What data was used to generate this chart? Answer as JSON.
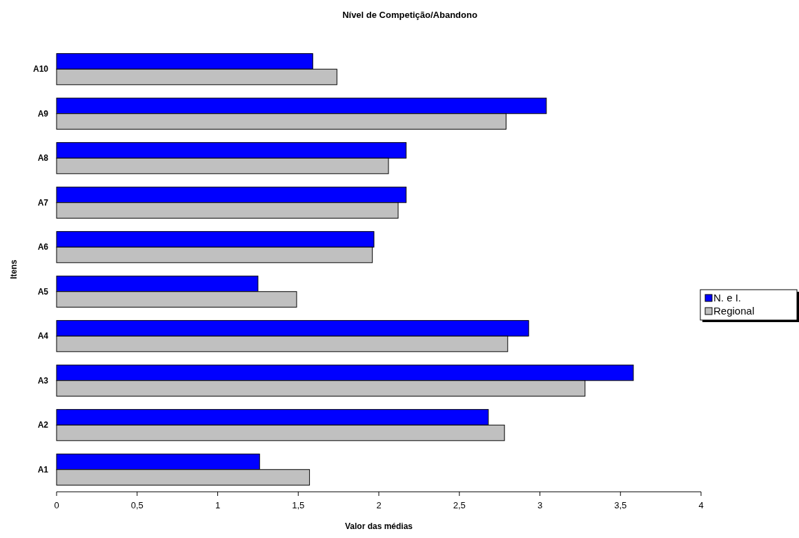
{
  "chart_data": {
    "type": "bar",
    "orientation": "horizontal",
    "title": "Nível de Competição/Abandono",
    "xlabel": "Valor das médias",
    "ylabel": "Itens",
    "categories": [
      "A10",
      "A9",
      "A8",
      "A7",
      "A6",
      "A5",
      "A4",
      "A3",
      "A2",
      "A1"
    ],
    "series": [
      {
        "name": "N. e I.",
        "color": "#0000ff",
        "values": [
          1.59,
          3.04,
          2.17,
          2.17,
          1.97,
          1.25,
          2.93,
          3.58,
          2.68,
          1.26
        ]
      },
      {
        "name": "Regional",
        "color": "#c0c0c0",
        "values": [
          1.74,
          2.79,
          2.06,
          2.12,
          1.96,
          1.49,
          2.8,
          3.28,
          2.78,
          1.57
        ]
      }
    ],
    "xlim": [
      0,
      4
    ],
    "xticks": [
      0,
      {
        "value": 0.5,
        "label": "0,5"
      },
      1,
      {
        "value": 1.5,
        "label": "1,5"
      },
      2,
      {
        "value": 2.5,
        "label": "2,5"
      },
      3,
      {
        "value": 3.5,
        "label": "3,5"
      },
      4
    ],
    "legend": "right",
    "grid": false
  }
}
